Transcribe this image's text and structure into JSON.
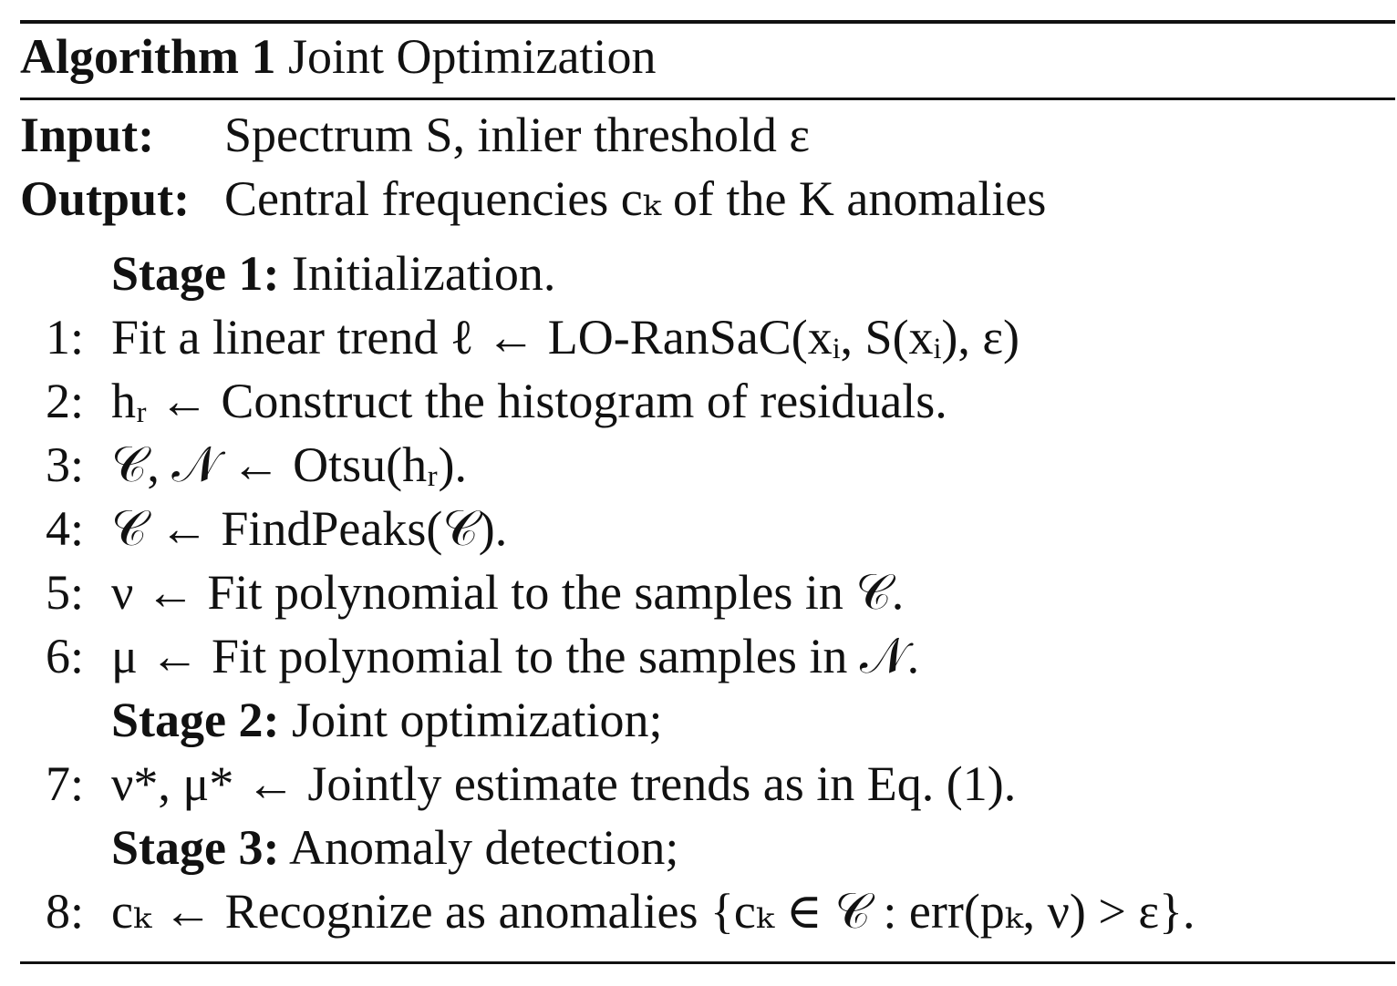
{
  "caption": {
    "label": "Algorithm 1",
    "title": "Joint Optimization"
  },
  "io": {
    "input_key": "Input:",
    "input_value": "Spectrum S, inlier threshold ε",
    "output_key": "Output:",
    "output_value": "Central frequencies cₖ of the K anomalies"
  },
  "stages": [
    {
      "label": "Stage 1:",
      "text": "Initialization."
    },
    {
      "label": "Stage 2:",
      "text": "Joint optimization;"
    },
    {
      "label": "Stage 3:",
      "text": "Anomaly detection;"
    }
  ],
  "steps": [
    {
      "num": "1:",
      "text": "Fit a linear trend ℓ ← LO-RanSaC(xᵢ, S(xᵢ), ε)"
    },
    {
      "num": "2:",
      "text": "hᵣ ← Construct the histogram of residuals."
    },
    {
      "num": "3:",
      "text": "𝒞, 𝒩 ← Otsu(hᵣ)."
    },
    {
      "num": "4:",
      "text": "𝒞 ← FindPeaks(𝒞)."
    },
    {
      "num": "5:",
      "text": "ν ← Fit polynomial to the samples in 𝒞."
    },
    {
      "num": "6:",
      "text": "μ ← Fit polynomial to the samples in 𝒩."
    },
    {
      "num": "7:",
      "text": "ν*, μ* ← Jointly estimate trends as in Eq. (1)."
    },
    {
      "num": "8:",
      "text": "cₖ ← Recognize as anomalies {cₖ ∈ 𝒞 : err(pₖ, ν) > ε}."
    }
  ]
}
